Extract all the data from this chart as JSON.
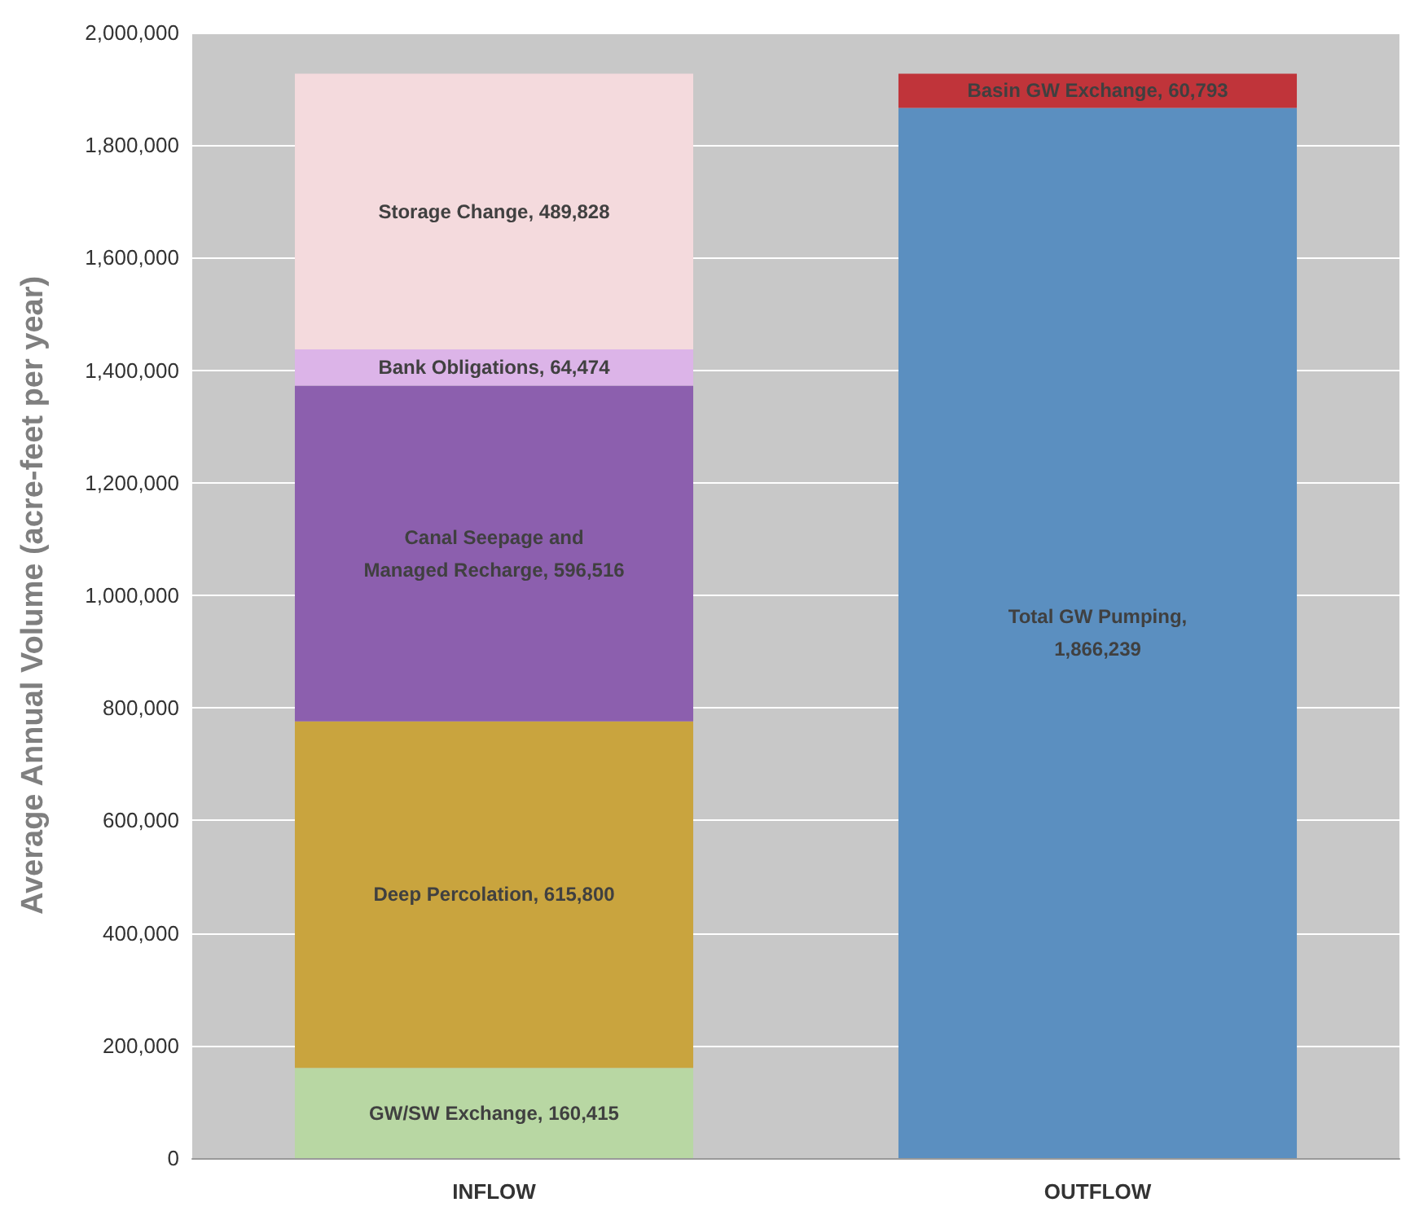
{
  "chart_data": {
    "type": "bar",
    "stacked": true,
    "ylabel": "Average Annual Volume (acre-feet per year)",
    "categories": [
      "INFLOW",
      "OUTFLOW"
    ],
    "series": [
      {
        "color": "#b8d7a3",
        "values": [
          160415,
          null
        ],
        "value_labels": [
          "GW/SW Exchange, 160,415",
          null
        ]
      },
      {
        "color": "#c9a43e",
        "values": [
          615800,
          null
        ],
        "value_labels": [
          "Deep Percolation, 615,800",
          null
        ]
      },
      {
        "color": "#8c5fae",
        "values": [
          596516,
          null
        ],
        "value_labels": [
          "Canal Seepage and Managed Recharge, 596,516",
          null
        ]
      },
      {
        "color": "#dcb4e8",
        "values": [
          64474,
          null
        ],
        "value_labels": [
          "Bank Obligations, 64,474",
          null
        ]
      },
      {
        "color": "#f4dadd",
        "values": [
          489828,
          null
        ],
        "value_labels": [
          "Storage Change, 489,828",
          null
        ]
      },
      {
        "color": "#5b8fc0",
        "values": [
          null,
          1866239
        ],
        "value_labels": [
          null,
          "Total GW Pumping, 1,866,239"
        ]
      },
      {
        "color": "#c0343a",
        "values": [
          null,
          60793
        ],
        "value_labels": [
          null,
          "Basin GW Exchange, 60,793"
        ]
      }
    ],
    "ylim": [
      0,
      2000000
    ],
    "yticks": [
      0,
      {
        "value": 200000,
        "label": "200,000"
      },
      {
        "value": 400000,
        "label": "400,000"
      },
      {
        "value": 600000,
        "label": "600,000"
      },
      {
        "value": 800000,
        "label": "800,000"
      },
      {
        "value": 1000000,
        "label": "1,000,000"
      },
      {
        "value": 1200000,
        "label": "1,200,000"
      },
      {
        "value": 1400000,
        "label": "1,400,000"
      },
      {
        "value": 1600000,
        "label": "1,600,000"
      },
      {
        "value": 1800000,
        "label": "1,800,000"
      },
      {
        "value": 2000000,
        "label": "2,000,000"
      }
    ],
    "grid": "y"
  }
}
